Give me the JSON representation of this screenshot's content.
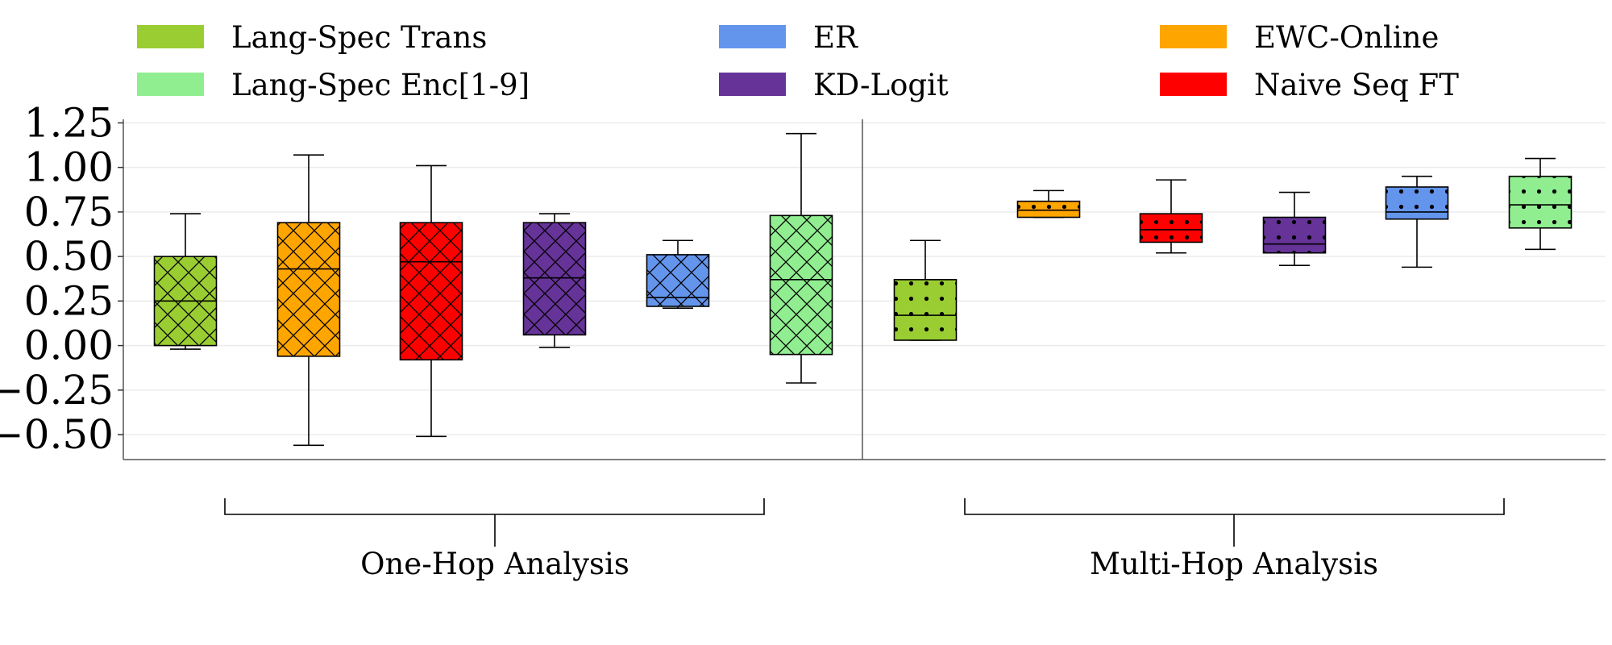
{
  "chart_data": {
    "type": "boxplot",
    "ylim": [
      -0.64,
      1.27
    ],
    "yticks": [
      1.25,
      1.0,
      0.75,
      0.5,
      0.25,
      0.0,
      -0.25,
      -0.5
    ],
    "ytick_labels": [
      "1.25",
      "1.00",
      "0.75",
      "0.50",
      "0.25",
      "0.00",
      "−0.25",
      "−0.50"
    ],
    "grid": true,
    "legend": {
      "placement": "top",
      "entries": [
        {
          "name": "Lang-Spec Trans",
          "color": "#9acd32"
        },
        {
          "name": "ER",
          "color": "#6495ed"
        },
        {
          "name": "EWC-Online",
          "color": "#ffa500"
        },
        {
          "name": "Lang-Spec Enc[1-9]",
          "color": "#90ee90"
        },
        {
          "name": "KD-Logit",
          "color": "#663399"
        },
        {
          "name": "Naive Seq FT",
          "color": "#ff0000"
        }
      ]
    },
    "groups": [
      {
        "label": "One-Hop Analysis",
        "hatch": "cross",
        "boxes": [
          {
            "method": "Lang-Spec Trans",
            "color": "#9acd32",
            "whisker_low": -0.02,
            "q1": 0.0,
            "median": 0.25,
            "q3": 0.5,
            "whisker_high": 0.74
          },
          {
            "method": "EWC-Online",
            "color": "#ffa500",
            "whisker_low": -0.56,
            "q1": -0.06,
            "median": 0.43,
            "q3": 0.69,
            "whisker_high": 1.07
          },
          {
            "method": "Naive Seq FT",
            "color": "#ff0000",
            "whisker_low": -0.51,
            "q1": -0.08,
            "median": 0.47,
            "q3": 0.69,
            "whisker_high": 1.01
          },
          {
            "method": "KD-Logit",
            "color": "#663399",
            "whisker_low": -0.01,
            "q1": 0.06,
            "median": 0.38,
            "q3": 0.69,
            "whisker_high": 0.74
          },
          {
            "method": "ER",
            "color": "#6495ed",
            "whisker_low": 0.21,
            "q1": 0.22,
            "median": 0.27,
            "q3": 0.51,
            "whisker_high": 0.59
          },
          {
            "method": "Lang-Spec Enc[1-9]",
            "color": "#90ee90",
            "whisker_low": -0.21,
            "q1": -0.05,
            "median": 0.37,
            "q3": 0.73,
            "whisker_high": 1.19
          }
        ]
      },
      {
        "label": "Multi-Hop Analysis",
        "hatch": "dots",
        "boxes": [
          {
            "method": "Lang-Spec Trans",
            "color": "#9acd32",
            "whisker_low": 0.03,
            "q1": 0.03,
            "median": 0.17,
            "q3": 0.37,
            "whisker_high": 0.59
          },
          {
            "method": "EWC-Online",
            "color": "#ffa500",
            "whisker_low": 0.72,
            "q1": 0.72,
            "median": 0.76,
            "q3": 0.81,
            "whisker_high": 0.87
          },
          {
            "method": "Naive Seq FT",
            "color": "#ff0000",
            "whisker_low": 0.52,
            "q1": 0.58,
            "median": 0.65,
            "q3": 0.74,
            "whisker_high": 0.93
          },
          {
            "method": "KD-Logit",
            "color": "#663399",
            "whisker_low": 0.45,
            "q1": 0.52,
            "median": 0.57,
            "q3": 0.72,
            "whisker_high": 0.86
          },
          {
            "method": "ER",
            "color": "#6495ed",
            "whisker_low": 0.44,
            "q1": 0.71,
            "median": 0.75,
            "q3": 0.89,
            "whisker_high": 0.95
          },
          {
            "method": "Lang-Spec Enc[1-9]",
            "color": "#90ee90",
            "whisker_low": 0.54,
            "q1": 0.66,
            "median": 0.79,
            "q3": 0.95,
            "whisker_high": 1.05
          }
        ]
      }
    ]
  }
}
